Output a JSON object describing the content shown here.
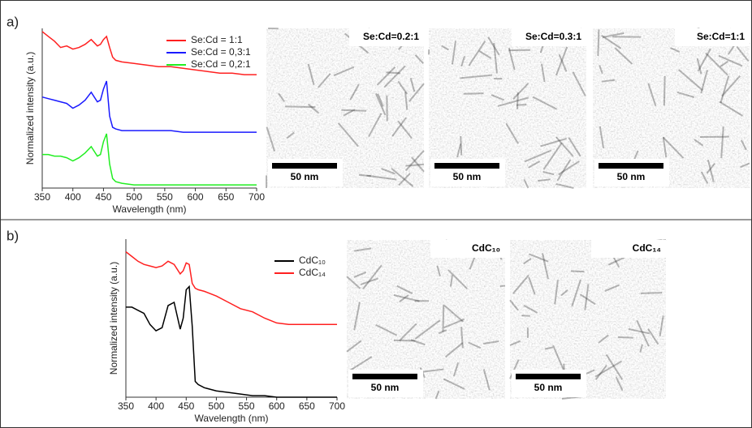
{
  "panels": [
    {
      "label": "a)",
      "images": [
        {
          "label": "Se:Cd=0.2:1",
          "scale_bar": "50 nm"
        },
        {
          "label": "Se:Cd=0.3:1",
          "scale_bar": "50 nm"
        },
        {
          "label": "Se:Cd=1:1",
          "scale_bar": "50 nm"
        }
      ]
    },
    {
      "label": "b)",
      "images": [
        {
          "label": "CdC₁₀",
          "scale_bar": "50 nm"
        },
        {
          "label": "CdC₁₄",
          "scale_bar": "50 nm"
        }
      ]
    }
  ],
  "chart_data": [
    {
      "type": "line",
      "x_label": "Wavelength (nm)",
      "y_label": "Normalized intensity (a.u.)",
      "x": [
        350,
        360,
        370,
        380,
        390,
        400,
        410,
        420,
        430,
        440,
        445,
        450,
        455,
        460,
        465,
        470,
        480,
        500,
        520,
        540,
        560,
        580,
        600,
        620,
        640,
        660,
        680,
        700
      ],
      "series": [
        {
          "name": "Se:Cd = 1:1",
          "color": "#ff2020",
          "values": [
            0.98,
            0.95,
            0.92,
            0.88,
            0.89,
            0.87,
            0.88,
            0.9,
            0.93,
            0.89,
            0.9,
            0.93,
            0.95,
            0.88,
            0.82,
            0.8,
            0.79,
            0.78,
            0.77,
            0.76,
            0.76,
            0.75,
            0.74,
            0.73,
            0.72,
            0.72,
            0.71,
            0.71
          ]
        },
        {
          "name": "Se:Cd = 0,3:1",
          "color": "#1a1aff",
          "values": [
            0.57,
            0.56,
            0.55,
            0.54,
            0.53,
            0.5,
            0.52,
            0.55,
            0.6,
            0.54,
            0.55,
            0.62,
            0.67,
            0.45,
            0.38,
            0.37,
            0.36,
            0.36,
            0.36,
            0.36,
            0.36,
            0.35,
            0.35,
            0.35,
            0.35,
            0.35,
            0.35,
            0.35
          ]
        },
        {
          "name": "Se:Cd = 0,2:1",
          "color": "#22ee22",
          "values": [
            0.21,
            0.21,
            0.2,
            0.2,
            0.19,
            0.17,
            0.19,
            0.22,
            0.26,
            0.2,
            0.21,
            0.29,
            0.34,
            0.15,
            0.06,
            0.04,
            0.03,
            0.02,
            0.02,
            0.02,
            0.02,
            0.02,
            0.02,
            0.02,
            0.02,
            0.02,
            0.02,
            0.02
          ]
        }
      ],
      "xlim": [
        350,
        700
      ],
      "xticks": [
        350,
        400,
        450,
        500,
        550,
        600,
        650,
        700
      ],
      "ylim": [
        0,
        1
      ]
    },
    {
      "type": "line",
      "x_label": "Wavelength (nm)",
      "y_label": "Normalized intensity (a.u.)",
      "x": [
        350,
        360,
        370,
        380,
        390,
        400,
        410,
        420,
        430,
        440,
        445,
        450,
        455,
        460,
        465,
        470,
        480,
        500,
        520,
        540,
        560,
        580,
        600,
        620,
        640,
        660,
        680,
        700
      ],
      "series": [
        {
          "name": "CdC₁₀",
          "color": "#000000",
          "values": [
            0.57,
            0.57,
            0.55,
            0.53,
            0.46,
            0.42,
            0.44,
            0.58,
            0.6,
            0.43,
            0.5,
            0.68,
            0.7,
            0.45,
            0.1,
            0.08,
            0.06,
            0.04,
            0.03,
            0.02,
            0.01,
            0.01,
            0.0,
            0.0,
            0.0,
            0.0,
            0.0,
            0.0
          ]
        },
        {
          "name": "CdC₁₄",
          "color": "#ff2020",
          "values": [
            0.92,
            0.89,
            0.86,
            0.84,
            0.83,
            0.82,
            0.83,
            0.86,
            0.84,
            0.78,
            0.8,
            0.85,
            0.84,
            0.72,
            0.69,
            0.68,
            0.67,
            0.64,
            0.6,
            0.56,
            0.54,
            0.5,
            0.47,
            0.46,
            0.46,
            0.46,
            0.46,
            0.46
          ]
        }
      ],
      "xlim": [
        350,
        700
      ],
      "xticks": [
        350,
        400,
        450,
        500,
        550,
        600,
        650,
        700
      ],
      "ylim": [
        0,
        1
      ]
    }
  ]
}
